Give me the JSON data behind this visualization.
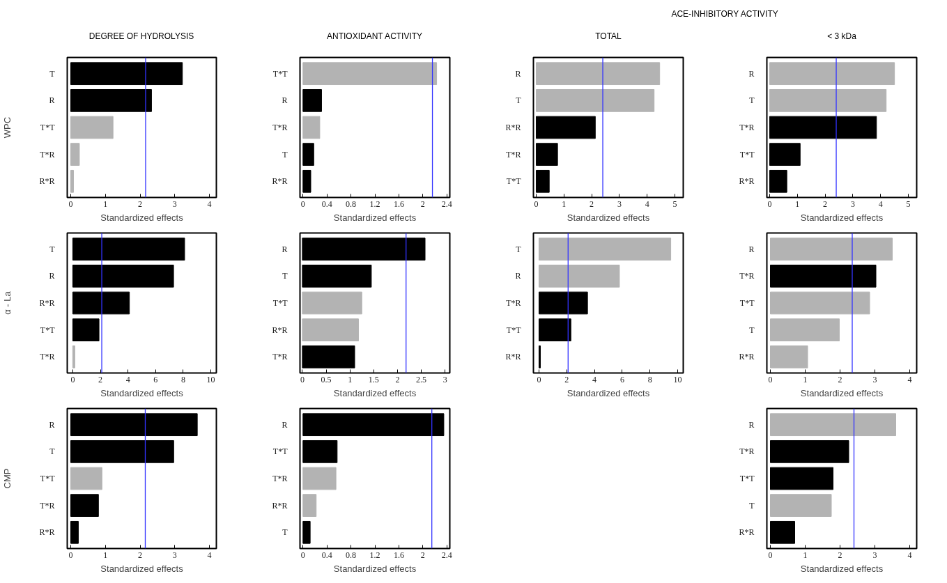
{
  "chart_data": [
    {
      "type": "bar",
      "orientation": "horizontal",
      "title": "DEGREE OF HYDROLYSIS",
      "ylabel": "WPC",
      "xlabel": "Standardized effects",
      "categories": [
        "T",
        "R",
        "T*T",
        "T*R",
        "R*R"
      ],
      "values": [
        3.22,
        2.33,
        1.22,
        0.25,
        0.08
      ],
      "colors": [
        "#000000",
        "#000000",
        "#b3b3b3",
        "#b3b3b3",
        "#b3b3b3"
      ],
      "xlim": [
        -0.1,
        4.2
      ],
      "xticks": [
        0,
        1,
        2,
        3,
        4
      ],
      "ref_lines": [
        {
          "axis": "x",
          "value": 2.16,
          "color": "#3333ff"
        }
      ]
    },
    {
      "type": "bar",
      "orientation": "horizontal",
      "title": "ANTIOXIDANT ACTIVITY",
      "xlabel": "Standardized effects",
      "categories": [
        "T*T",
        "R",
        "T*R",
        "T",
        "R*R"
      ],
      "values": [
        2.23,
        0.31,
        0.28,
        0.18,
        0.13
      ],
      "colors": [
        "#b3b3b3",
        "#000000",
        "#b3b3b3",
        "#000000",
        "#000000"
      ],
      "xlim": [
        -0.05,
        2.45
      ],
      "xticks": [
        0,
        0.4,
        0.8,
        1.2,
        1.6,
        2,
        2.4
      ],
      "ref_lines": [
        {
          "axis": "x",
          "value": 2.16,
          "color": "#3333ff"
        }
      ]
    },
    {
      "type": "bar",
      "orientation": "horizontal",
      "title": "TOTAL",
      "annotations": [
        "ACE-INHIBITORY ACTIVITY"
      ],
      "xlabel": "Standardized effects",
      "categories": [
        "R",
        "T",
        "R*R",
        "T*R",
        "T*T"
      ],
      "values": [
        4.45,
        4.25,
        2.13,
        0.77,
        0.47
      ],
      "colors": [
        "#b3b3b3",
        "#b3b3b3",
        "#000000",
        "#000000",
        "#000000"
      ],
      "xlim": [
        -0.1,
        5.3
      ],
      "xticks": [
        0,
        1,
        2,
        3,
        4,
        5
      ],
      "ref_lines": [
        {
          "axis": "x",
          "value": 2.4,
          "color": "#3333ff"
        }
      ]
    },
    {
      "type": "bar",
      "orientation": "horizontal",
      "title": "< 3 kDa",
      "xlabel": "Standardized effects",
      "categories": [
        "R",
        "T",
        "T*R",
        "T*T",
        "R*R"
      ],
      "values": [
        4.5,
        4.2,
        3.85,
        1.1,
        0.62
      ],
      "colors": [
        "#b3b3b3",
        "#b3b3b3",
        "#000000",
        "#000000",
        "#000000"
      ],
      "xlim": [
        -0.1,
        5.3
      ],
      "xticks": [
        0,
        1,
        2,
        3,
        4,
        5
      ],
      "ref_lines": [
        {
          "axis": "x",
          "value": 2.4,
          "color": "#3333ff"
        }
      ]
    },
    {
      "type": "bar",
      "orientation": "horizontal",
      "ylabel": "α - La",
      "xlabel": "Standardized effects",
      "categories": [
        "T",
        "R",
        "R*R",
        "T*T",
        "T*R"
      ],
      "values": [
        8.1,
        7.3,
        4.1,
        1.9,
        0.15
      ],
      "colors": [
        "#000000",
        "#000000",
        "#000000",
        "#000000",
        "#b3b3b3"
      ],
      "xlim": [
        -0.4,
        10.4
      ],
      "xticks": [
        0,
        2,
        4,
        6,
        8,
        10
      ],
      "ref_lines": [
        {
          "axis": "x",
          "value": 2.1,
          "color": "#3333ff"
        }
      ]
    },
    {
      "type": "bar",
      "orientation": "horizontal",
      "xlabel": "Standardized effects",
      "categories": [
        "R",
        "T",
        "T*T",
        "R*R",
        "T*R"
      ],
      "values": [
        2.58,
        1.45,
        1.25,
        1.18,
        1.1
      ],
      "colors": [
        "#000000",
        "#000000",
        "#b3b3b3",
        "#b3b3b3",
        "#000000"
      ],
      "xlim": [
        -0.05,
        3.1
      ],
      "xticks": [
        0,
        0.5,
        1,
        1.5,
        2,
        2.5,
        3
      ],
      "ref_lines": [
        {
          "axis": "x",
          "value": 2.18,
          "color": "#3333ff"
        }
      ]
    },
    {
      "type": "bar",
      "orientation": "horizontal",
      "xlabel": "Standardized effects",
      "categories": [
        "T",
        "R",
        "T*R",
        "T*T",
        "R*R"
      ],
      "values": [
        9.5,
        5.8,
        3.5,
        2.3,
        0.1
      ],
      "colors": [
        "#b3b3b3",
        "#b3b3b3",
        "#000000",
        "#000000",
        "#000000"
      ],
      "xlim": [
        -0.4,
        10.4
      ],
      "xticks": [
        0,
        2,
        4,
        6,
        8,
        10
      ],
      "ref_lines": [
        {
          "axis": "x",
          "value": 2.1,
          "color": "#3333ff"
        }
      ]
    },
    {
      "type": "bar",
      "orientation": "horizontal",
      "xlabel": "Standardized effects",
      "categories": [
        "R",
        "T*R",
        "T*T",
        "T",
        "R*R"
      ],
      "values": [
        3.5,
        3.03,
        2.85,
        1.98,
        1.07
      ],
      "colors": [
        "#b3b3b3",
        "#000000",
        "#b3b3b3",
        "#b3b3b3",
        "#b3b3b3"
      ],
      "xlim": [
        -0.1,
        4.2
      ],
      "xticks": [
        0,
        1,
        2,
        3,
        4
      ],
      "ref_lines": [
        {
          "axis": "x",
          "value": 2.35,
          "color": "#3333ff"
        }
      ]
    },
    {
      "type": "bar",
      "orientation": "horizontal",
      "ylabel": "CMP",
      "xlabel": "Standardized effects",
      "categories": [
        "R",
        "T",
        "T*T",
        "T*R",
        "R*R"
      ],
      "values": [
        3.65,
        2.97,
        0.9,
        0.8,
        0.22
      ],
      "colors": [
        "#000000",
        "#000000",
        "#b3b3b3",
        "#000000",
        "#000000"
      ],
      "xlim": [
        -0.1,
        4.2
      ],
      "xticks": [
        0,
        1,
        2,
        3,
        4
      ],
      "ref_lines": [
        {
          "axis": "x",
          "value": 2.15,
          "color": "#3333ff"
        }
      ]
    },
    {
      "type": "bar",
      "orientation": "horizontal",
      "xlabel": "Standardized effects",
      "categories": [
        "R",
        "T*T",
        "T*R",
        "R*R",
        "T"
      ],
      "values": [
        2.35,
        0.57,
        0.55,
        0.22,
        0.12
      ],
      "colors": [
        "#000000",
        "#000000",
        "#b3b3b3",
        "#b3b3b3",
        "#000000"
      ],
      "xlim": [
        -0.05,
        2.45
      ],
      "xticks": [
        0,
        0.4,
        0.8,
        1.2,
        1.6,
        2,
        2.4
      ],
      "ref_lines": [
        {
          "axis": "x",
          "value": 2.15,
          "color": "#3333ff"
        }
      ]
    },
    {
      "type": "bar",
      "orientation": "horizontal",
      "xlabel": "Standardized effects",
      "categories": [
        "R",
        "T*R",
        "T*T",
        "T",
        "R*R"
      ],
      "values": [
        3.6,
        2.25,
        1.8,
        1.75,
        0.7
      ],
      "colors": [
        "#b3b3b3",
        "#000000",
        "#000000",
        "#b3b3b3",
        "#000000"
      ],
      "xlim": [
        -0.1,
        4.2
      ],
      "xticks": [
        0,
        1,
        2,
        3,
        4
      ],
      "ref_lines": [
        {
          "axis": "x",
          "value": 2.4,
          "color": "#3333ff"
        }
      ]
    }
  ]
}
